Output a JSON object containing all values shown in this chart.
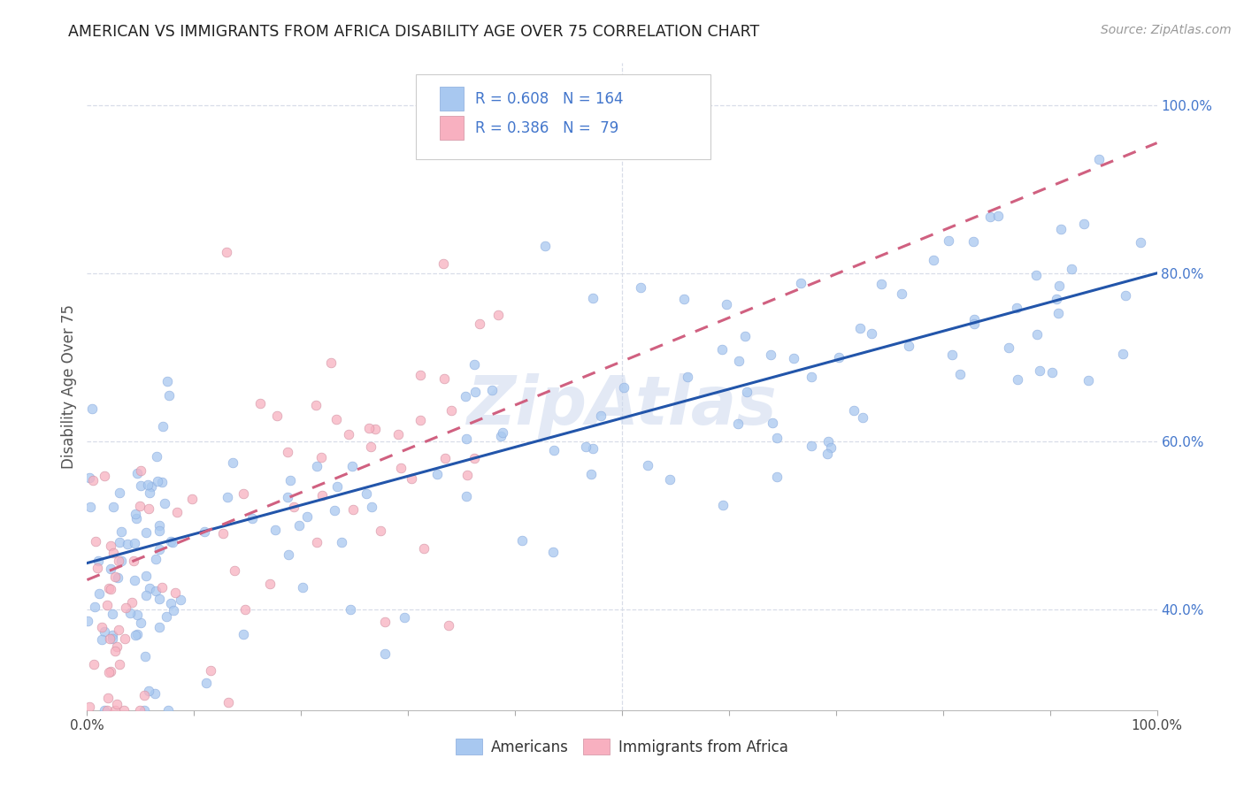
{
  "title": "AMERICAN VS IMMIGRANTS FROM AFRICA DISABILITY AGE OVER 75 CORRELATION CHART",
  "source": "Source: ZipAtlas.com",
  "ylabel": "Disability Age Over 75",
  "xlim": [
    0,
    1
  ],
  "ylim_data": [
    0.28,
    1.05
  ],
  "ytick_vals": [
    0.4,
    0.6,
    0.8,
    1.0
  ],
  "ytick_labels": [
    "40.0%",
    "60.0%",
    "80.0%",
    "100.0%"
  ],
  "watermark": "ZipAtlas",
  "blue_color": "#a8c8f0",
  "pink_color": "#f8b0c0",
  "line_blue": "#2255aa",
  "line_pink": "#d06080",
  "text_blue": "#4477cc",
  "background": "#ffffff",
  "grid_color": "#d8dde8",
  "n_american": 164,
  "n_africa": 79,
  "american_r": 0.608,
  "africa_r": 0.386,
  "dot_size": 60,
  "dot_alpha": 0.75,
  "line_width": 2.2,
  "blue_intercept": 0.455,
  "blue_slope": 0.345,
  "pink_intercept": 0.435,
  "pink_slope": 0.52
}
